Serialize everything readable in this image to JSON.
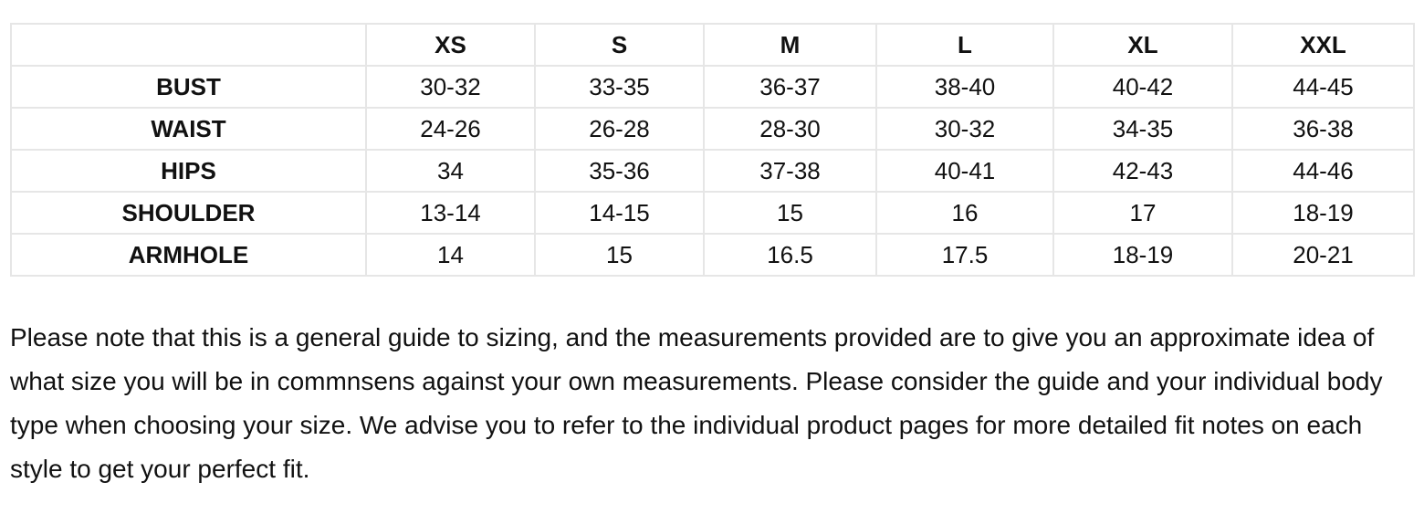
{
  "table": {
    "headers": [
      "",
      "XS",
      "S",
      "M",
      "L",
      "XL",
      "XXL"
    ],
    "rows": [
      {
        "label": "BUST",
        "values": [
          "30-32",
          "33-35",
          "36-37",
          "38-40",
          "40-42",
          "44-45"
        ]
      },
      {
        "label": "WAIST",
        "values": [
          "24-26",
          "26-28",
          "28-30",
          "30-32",
          "34-35",
          "36-38"
        ]
      },
      {
        "label": "HIPS",
        "values": [
          "34",
          "35-36",
          "37-38",
          "40-41",
          "42-43",
          "44-46"
        ]
      },
      {
        "label": "SHOULDER",
        "values": [
          "13-14",
          "14-15",
          "15",
          "16",
          "17",
          "18-19"
        ]
      },
      {
        "label": "ARMHOLE",
        "values": [
          "14",
          "15",
          "16.5",
          "17.5",
          "18-19",
          "20-21"
        ]
      }
    ]
  },
  "note": "Please note that this is a general guide to sizing, and the measurements provided are to give you an approximate idea of what size you will be in commnsens against your own measurements. Please consider the guide and your individual body type when choosing your size. We advise you to refer to the individual product pages for more detailed fit notes on each style to get your perfect fit."
}
